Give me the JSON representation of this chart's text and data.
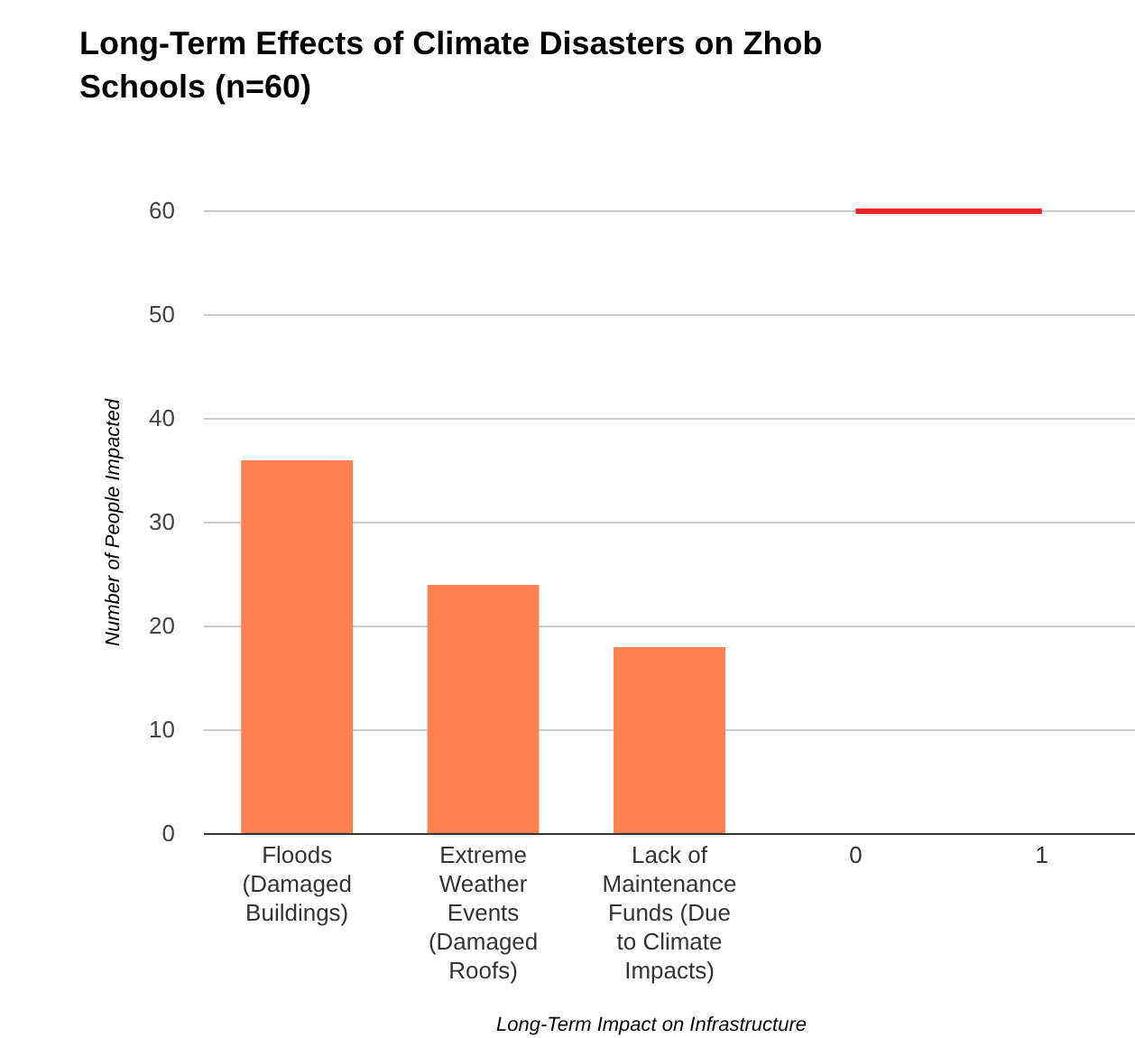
{
  "chart_data": {
    "type": "bar",
    "title": "Long-Term Effects of Climate Disasters on Zhob Schools (n=60)",
    "xlabel": "Long-Term Impact on Infrastructure",
    "ylabel": "Number of People Impacted",
    "categories": [
      "Floods (Damaged Buildings)",
      "Extreme Weather Events (Damaged Roofs)",
      "Lack of Maintenance Funds (Due to Climate Impacts)",
      "0",
      "1"
    ],
    "series": [
      {
        "color": "#ff8050",
        "values": [
          36,
          24,
          18,
          null,
          null
        ]
      },
      {
        "type": "line",
        "color": "#ee2222",
        "values": [
          null,
          null,
          null,
          60,
          60
        ]
      }
    ],
    "ylim": [
      0,
      60
    ],
    "yticks": [
      0,
      10,
      20,
      30,
      40,
      50,
      60
    ],
    "grid": "y"
  }
}
